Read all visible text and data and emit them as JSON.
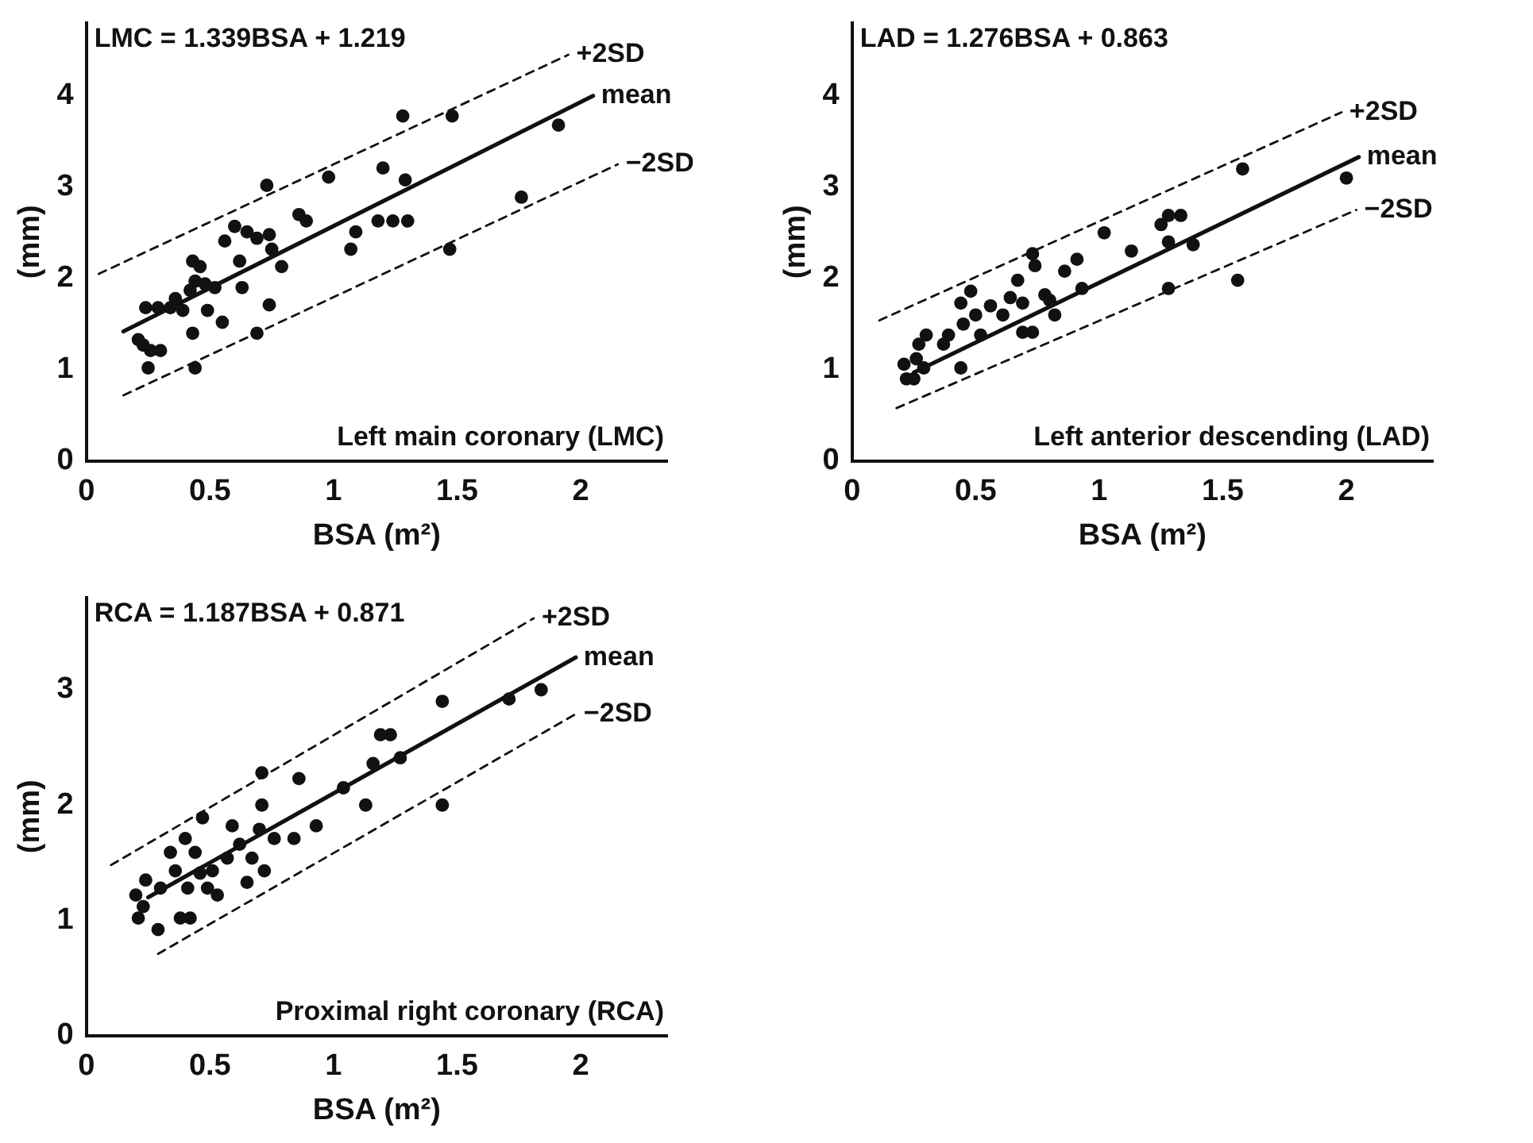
{
  "chart_data": [
    {
      "type": "scatter",
      "xlabel": "BSA (m²)",
      "ylabel": "(mm)",
      "xlim": [
        0,
        2.35
      ],
      "ylim": [
        0,
        4.8
      ],
      "xticks": [
        0,
        0.5,
        1,
        1.5,
        2
      ],
      "yticks": [
        0,
        1,
        2,
        3,
        4
      ],
      "grid": false,
      "legend": false,
      "annotations": [
        "LMC = 1.339BSA + 1.219",
        "Left main coronary (LMC)"
      ],
      "series": [
        {
          "type": "scatter",
          "color": "#111111",
          "marker": "circle",
          "x": [
            0.25,
            0.21,
            0.23,
            0.26,
            0.3,
            0.24,
            0.29,
            0.34,
            0.36,
            0.39,
            0.43,
            0.46,
            0.42,
            0.44,
            0.48,
            0.52,
            0.43,
            0.44,
            0.49,
            0.55,
            0.56,
            0.6,
            0.62,
            0.63,
            0.65,
            0.69,
            0.73,
            0.74,
            0.75,
            0.74,
            0.69,
            0.79,
            0.86,
            0.89,
            0.98,
            1.07,
            1.09,
            1.2,
            1.18,
            1.24,
            1.3,
            1.29,
            1.28,
            1.48,
            1.47,
            1.76,
            1.91
          ],
          "values": [
            1.02,
            1.33,
            1.27,
            1.21,
            1.21,
            1.68,
            1.68,
            1.68,
            1.78,
            1.65,
            2.19,
            2.13,
            1.87,
            1.97,
            1.94,
            1.9,
            1.4,
            1.02,
            1.65,
            1.52,
            2.41,
            2.57,
            2.19,
            1.9,
            2.51,
            2.44,
            3.02,
            2.48,
            2.32,
            1.71,
            1.4,
            2.13,
            2.7,
            2.63,
            3.11,
            2.32,
            2.51,
            3.21,
            2.63,
            2.63,
            2.63,
            3.08,
            3.78,
            3.78,
            2.32,
            2.89,
            3.68
          ]
        },
        {
          "type": "line",
          "name": "+2SD",
          "color": "#111111",
          "line_style": "dashed",
          "marker": "none",
          "x": [
            0.05,
            1.95
          ],
          "values": [
            2.05,
            4.45
          ]
        },
        {
          "type": "line",
          "name": "mean",
          "color": "#111111",
          "line_style": "solid",
          "marker": "none",
          "x": [
            0.15,
            2.05
          ],
          "values": [
            1.42,
            4.0
          ]
        },
        {
          "type": "line",
          "name": "−2SD",
          "color": "#111111",
          "line_style": "dashed",
          "marker": "none",
          "x": [
            0.15,
            2.15
          ],
          "values": [
            0.72,
            3.25
          ]
        }
      ]
    },
    {
      "type": "scatter",
      "xlabel": "BSA (m²)",
      "ylabel": "(mm)",
      "xlim": [
        0,
        2.35
      ],
      "ylim": [
        0,
        4.8
      ],
      "xticks": [
        0,
        0.5,
        1,
        1.5,
        2
      ],
      "yticks": [
        0,
        1,
        2,
        3,
        4
      ],
      "grid": false,
      "legend": false,
      "annotations": [
        "LAD = 1.276BSA + 0.863",
        "Left anterior descending (LAD)"
      ],
      "series": [
        {
          "type": "scatter",
          "color": "#111111",
          "marker": "circle",
          "x": [
            0.21,
            0.22,
            0.25,
            0.27,
            0.3,
            0.26,
            0.29,
            0.37,
            0.39,
            0.44,
            0.45,
            0.48,
            0.44,
            0.5,
            0.52,
            0.56,
            0.61,
            0.64,
            0.67,
            0.69,
            0.73,
            0.74,
            0.69,
            0.73,
            0.78,
            0.8,
            0.82,
            0.86,
            0.91,
            0.93,
            1.02,
            1.13,
            1.25,
            1.28,
            1.33,
            1.28,
            1.38,
            1.28,
            1.56,
            1.58,
            2.0
          ],
          "values": [
            1.06,
            0.9,
            0.9,
            1.28,
            1.38,
            1.12,
            1.02,
            1.28,
            1.38,
            1.73,
            1.5,
            1.86,
            1.02,
            1.6,
            1.38,
            1.7,
            1.6,
            1.79,
            1.98,
            1.73,
            2.27,
            2.14,
            1.41,
            1.41,
            1.82,
            1.76,
            1.6,
            2.08,
            2.21,
            1.89,
            2.5,
            2.3,
            2.59,
            2.69,
            2.69,
            2.4,
            2.37,
            1.89,
            1.98,
            3.2,
            3.1
          ]
        },
        {
          "type": "line",
          "name": "+2SD",
          "color": "#111111",
          "line_style": "dashed",
          "marker": "none",
          "x": [
            0.11,
            1.98
          ],
          "values": [
            1.54,
            3.82
          ]
        },
        {
          "type": "line",
          "name": "mean",
          "color": "#111111",
          "line_style": "solid",
          "marker": "none",
          "x": [
            0.25,
            2.05
          ],
          "values": [
            0.97,
            3.33
          ]
        },
        {
          "type": "line",
          "name": "−2SD",
          "color": "#111111",
          "line_style": "dashed",
          "marker": "none",
          "x": [
            0.18,
            2.04
          ],
          "values": [
            0.58,
            2.75
          ]
        }
      ]
    },
    {
      "type": "scatter",
      "xlabel": "BSA (m²)",
      "ylabel": "(mm)",
      "xlim": [
        0,
        2.35
      ],
      "ylim": [
        0,
        3.8
      ],
      "xticks": [
        0,
        0.5,
        1,
        1.5,
        2
      ],
      "yticks": [
        0,
        1,
        2,
        3
      ],
      "grid": false,
      "legend": false,
      "annotations": [
        "RCA = 1.187BSA + 0.871",
        "Proximal right coronary (RCA)"
      ],
      "series": [
        {
          "type": "scatter",
          "color": "#111111",
          "marker": "circle",
          "x": [
            0.2,
            0.21,
            0.23,
            0.24,
            0.29,
            0.3,
            0.34,
            0.36,
            0.38,
            0.42,
            0.4,
            0.41,
            0.44,
            0.46,
            0.47,
            0.49,
            0.51,
            0.53,
            0.57,
            0.59,
            0.62,
            0.65,
            0.67,
            0.7,
            0.71,
            0.71,
            0.72,
            0.76,
            0.84,
            0.86,
            0.93,
            1.04,
            1.13,
            1.16,
            1.19,
            1.23,
            1.27,
            1.44,
            1.44,
            1.71,
            1.84
          ],
          "values": [
            1.22,
            1.02,
            1.12,
            1.35,
            0.92,
            1.28,
            1.59,
            1.43,
            1.02,
            1.02,
            1.71,
            1.28,
            1.59,
            1.41,
            1.89,
            1.28,
            1.43,
            1.22,
            1.54,
            1.82,
            1.66,
            1.33,
            1.54,
            1.79,
            2.0,
            2.28,
            1.43,
            1.71,
            1.71,
            2.23,
            1.82,
            2.15,
            2.0,
            2.36,
            2.61,
            2.61,
            2.41,
            2.9,
            2.0,
            2.92,
            3.0
          ]
        },
        {
          "type": "line",
          "name": "+2SD",
          "color": "#111111",
          "line_style": "dashed",
          "marker": "none",
          "x": [
            0.1,
            1.81
          ],
          "values": [
            1.48,
            3.62
          ]
        },
        {
          "type": "line",
          "name": "mean",
          "color": "#111111",
          "line_style": "solid",
          "marker": "none",
          "x": [
            0.25,
            1.98
          ],
          "values": [
            1.2,
            3.28
          ]
        },
        {
          "type": "line",
          "name": "−2SD",
          "color": "#111111",
          "line_style": "dashed",
          "marker": "none",
          "x": [
            0.29,
            1.98
          ],
          "values": [
            0.71,
            2.79
          ]
        }
      ]
    }
  ]
}
